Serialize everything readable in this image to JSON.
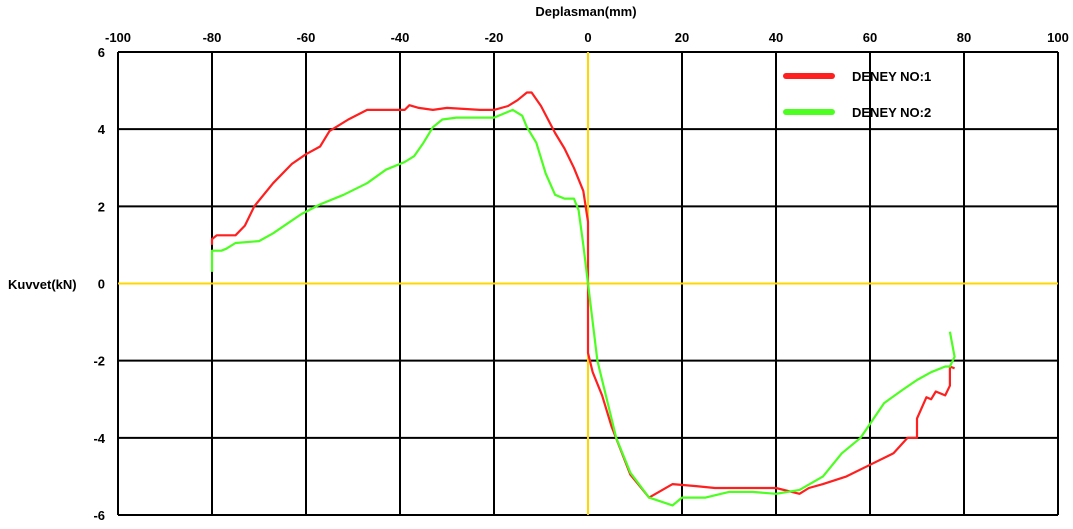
{
  "chart_data": {
    "type": "line",
    "title": "",
    "xlabel": "Deplasman(mm)",
    "ylabel": "Kuvvet(kN)",
    "xlim": [
      -100,
      100
    ],
    "ylim": [
      -6,
      6
    ],
    "xticks": [
      -100,
      -80,
      -60,
      -40,
      -20,
      0,
      20,
      40,
      60,
      80,
      100
    ],
    "yticks": [
      6,
      4,
      2,
      0,
      -2,
      -4,
      -6
    ],
    "xtick_labels": [
      "-100",
      "-80",
      "-60",
      "-40",
      "-20",
      "0",
      "20",
      "40",
      "60",
      "80",
      "100"
    ],
    "ytick_labels": [
      "6",
      "4",
      "2",
      "0",
      "-2",
      "-4",
      "-6"
    ],
    "grid": true,
    "zero_line_color": "#ffd700",
    "legend_position": "top-right",
    "series": [
      {
        "name": "DENEY NO:1",
        "color": "#ff1f1f",
        "points": [
          [
            -80,
            1.0
          ],
          [
            -80,
            1.15
          ],
          [
            -79,
            1.25
          ],
          [
            -75,
            1.25
          ],
          [
            -73,
            1.5
          ],
          [
            -71,
            2.0
          ],
          [
            -67,
            2.6
          ],
          [
            -63,
            3.1
          ],
          [
            -60,
            3.35
          ],
          [
            -57,
            3.55
          ],
          [
            -55,
            3.95
          ],
          [
            -53,
            4.1
          ],
          [
            -51,
            4.25
          ],
          [
            -47,
            4.5
          ],
          [
            -39,
            4.5
          ],
          [
            -38,
            4.62
          ],
          [
            -36,
            4.55
          ],
          [
            -33,
            4.5
          ],
          [
            -30,
            4.55
          ],
          [
            -23,
            4.5
          ],
          [
            -20,
            4.5
          ],
          [
            -17,
            4.6
          ],
          [
            -15,
            4.75
          ],
          [
            -13,
            4.95
          ],
          [
            -12,
            4.95
          ],
          [
            -10,
            4.6
          ],
          [
            -7,
            3.9
          ],
          [
            -5,
            3.5
          ],
          [
            -3,
            3.0
          ],
          [
            -1,
            2.4
          ],
          [
            0,
            1.6
          ],
          [
            0,
            0
          ],
          [
            0,
            -1.8
          ],
          [
            1,
            -2.3
          ],
          [
            3,
            -2.9
          ],
          [
            5,
            -3.7
          ],
          [
            9,
            -4.95
          ],
          [
            13,
            -5.55
          ],
          [
            18,
            -5.2
          ],
          [
            23,
            -5.25
          ],
          [
            27,
            -5.3
          ],
          [
            40,
            -5.3
          ],
          [
            45,
            -5.45
          ],
          [
            47,
            -5.3
          ],
          [
            50,
            -5.2
          ],
          [
            55,
            -5.0
          ],
          [
            60,
            -4.7
          ],
          [
            65,
            -4.4
          ],
          [
            68,
            -4.0
          ],
          [
            70,
            -4.0
          ],
          [
            70,
            -3.5
          ],
          [
            72,
            -2.95
          ],
          [
            73,
            -3.0
          ],
          [
            74,
            -2.8
          ],
          [
            76,
            -2.9
          ],
          [
            77,
            -2.65
          ],
          [
            77,
            -2.15
          ],
          [
            78,
            -2.2
          ]
        ]
      },
      {
        "name": "DENEY NO:2",
        "color": "#4cff20",
        "points": [
          [
            -80,
            0.3
          ],
          [
            -80,
            0.85
          ],
          [
            -78,
            0.85
          ],
          [
            -77,
            0.9
          ],
          [
            -75,
            1.05
          ],
          [
            -70,
            1.1
          ],
          [
            -67,
            1.3
          ],
          [
            -64,
            1.55
          ],
          [
            -61,
            1.8
          ],
          [
            -57,
            2.05
          ],
          [
            -52,
            2.3
          ],
          [
            -47,
            2.6
          ],
          [
            -43,
            2.95
          ],
          [
            -39,
            3.15
          ],
          [
            -37,
            3.3
          ],
          [
            -35,
            3.65
          ],
          [
            -33,
            4.05
          ],
          [
            -31,
            4.25
          ],
          [
            -28,
            4.3
          ],
          [
            -20,
            4.3
          ],
          [
            -16,
            4.5
          ],
          [
            -14,
            4.35
          ],
          [
            -13,
            4.05
          ],
          [
            -11,
            3.65
          ],
          [
            -9,
            2.85
          ],
          [
            -7,
            2.3
          ],
          [
            -5,
            2.2
          ],
          [
            -3,
            2.2
          ],
          [
            -2,
            1.9
          ],
          [
            -1,
            1.0
          ],
          [
            0,
            0
          ],
          [
            1,
            -1.0
          ],
          [
            2,
            -2.0
          ],
          [
            4,
            -3.0
          ],
          [
            6,
            -4.0
          ],
          [
            9,
            -4.9
          ],
          [
            13,
            -5.55
          ],
          [
            18,
            -5.75
          ],
          [
            20,
            -5.55
          ],
          [
            25,
            -5.55
          ],
          [
            30,
            -5.4
          ],
          [
            35,
            -5.4
          ],
          [
            40,
            -5.45
          ],
          [
            45,
            -5.35
          ],
          [
            50,
            -5.0
          ],
          [
            54,
            -4.4
          ],
          [
            58,
            -4.0
          ],
          [
            63,
            -3.1
          ],
          [
            67,
            -2.75
          ],
          [
            70,
            -2.5
          ],
          [
            73,
            -2.3
          ],
          [
            76,
            -2.15
          ],
          [
            77,
            -2.15
          ],
          [
            78,
            -1.9
          ],
          [
            77,
            -1.25
          ]
        ]
      }
    ]
  }
}
